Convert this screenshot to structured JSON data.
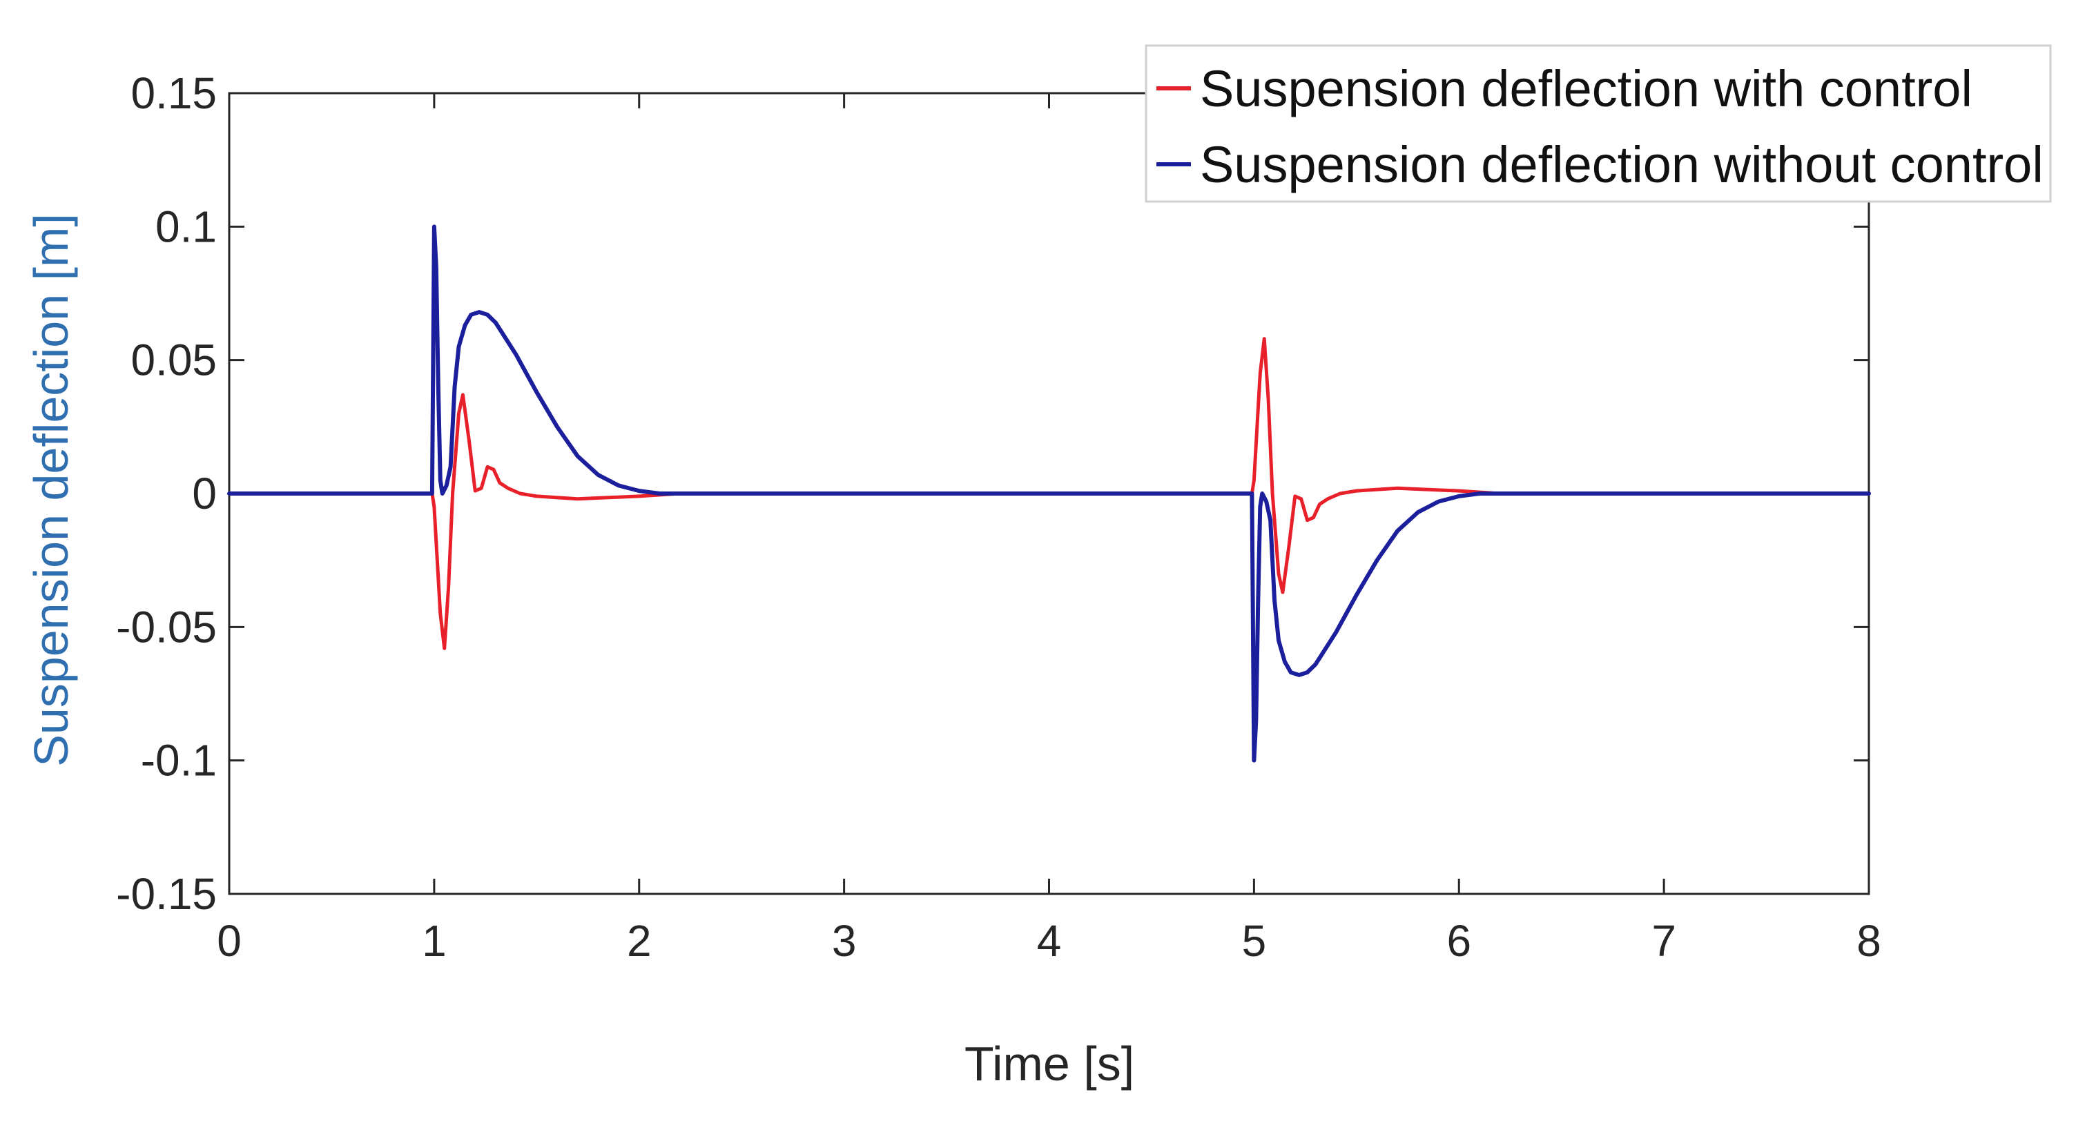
{
  "chart_data": {
    "type": "line",
    "title": "",
    "xlabel": "Time [s]",
    "ylabel": "Suspension deflection [m]",
    "xlim": [
      0,
      8
    ],
    "ylim": [
      -0.15,
      0.15
    ],
    "xticks": [
      0,
      1,
      2,
      3,
      4,
      5,
      6,
      7,
      8
    ],
    "xtick_labels": [
      "0",
      "1",
      "2",
      "3",
      "4",
      "5",
      "6",
      "7",
      "8"
    ],
    "yticks": [
      0.15,
      0.1,
      0.05,
      0,
      -0.05,
      -0.1,
      -0.15
    ],
    "ytick_labels": [
      "0.15",
      "0.1",
      "0.05",
      "0",
      "-0.05",
      "-0.1",
      "-0.15"
    ],
    "grid": false,
    "legend_position": "top-right",
    "series": [
      {
        "name": "Suspension deflection with control",
        "color": "#e8202a",
        "x": [
          0,
          0.99,
          1.0,
          1.03,
          1.05,
          1.07,
          1.09,
          1.12,
          1.14,
          1.17,
          1.2,
          1.23,
          1.26,
          1.29,
          1.32,
          1.36,
          1.42,
          1.5,
          1.7,
          1.85,
          2.0,
          2.2,
          2.5,
          3.0,
          4.99,
          5.0,
          5.03,
          5.05,
          5.07,
          5.09,
          5.12,
          5.14,
          5.17,
          5.2,
          5.23,
          5.26,
          5.29,
          5.32,
          5.36,
          5.42,
          5.5,
          5.7,
          5.85,
          6.0,
          6.2,
          6.5,
          7.0,
          8.0
        ],
        "values": [
          0,
          0,
          -0.005,
          -0.045,
          -0.058,
          -0.035,
          0.0,
          0.03,
          0.037,
          0.02,
          0.001,
          0.002,
          0.01,
          0.009,
          0.004,
          0.002,
          0.0,
          -0.001,
          -0.002,
          -0.0015,
          -0.001,
          0.0,
          0.0,
          0.0,
          0,
          0.005,
          0.045,
          0.058,
          0.035,
          0.0,
          -0.03,
          -0.037,
          -0.02,
          -0.001,
          -0.002,
          -0.01,
          -0.009,
          -0.004,
          -0.002,
          0.0,
          0.001,
          0.002,
          0.0015,
          0.001,
          0.0,
          0.0,
          0.0,
          0.0
        ]
      },
      {
        "name": "Suspension deflection without control",
        "color": "#1b1f9c",
        "x": [
          0,
          0.99,
          1.0,
          1.01,
          1.02,
          1.03,
          1.04,
          1.06,
          1.08,
          1.1,
          1.12,
          1.15,
          1.18,
          1.22,
          1.26,
          1.3,
          1.4,
          1.5,
          1.6,
          1.7,
          1.8,
          1.9,
          2.0,
          2.1,
          2.3,
          3.0,
          4.99,
          5.0,
          5.01,
          5.02,
          5.03,
          5.04,
          5.06,
          5.08,
          5.1,
          5.12,
          5.15,
          5.18,
          5.22,
          5.26,
          5.3,
          5.4,
          5.5,
          5.6,
          5.7,
          5.8,
          5.9,
          6.0,
          6.1,
          6.3,
          8.0
        ],
        "values": [
          0,
          0,
          0.1,
          0.085,
          0.04,
          0.005,
          0.0,
          0.003,
          0.01,
          0.04,
          0.055,
          0.063,
          0.067,
          0.068,
          0.067,
          0.064,
          0.052,
          0.038,
          0.025,
          0.014,
          0.007,
          0.003,
          0.001,
          0.0,
          0.0,
          0.0,
          0,
          -0.1,
          -0.085,
          -0.04,
          -0.005,
          0.0,
          -0.003,
          -0.01,
          -0.04,
          -0.055,
          -0.063,
          -0.067,
          -0.068,
          -0.067,
          -0.064,
          -0.052,
          -0.038,
          -0.025,
          -0.014,
          -0.007,
          -0.003,
          -0.001,
          0.0,
          0.0,
          0.0
        ]
      }
    ]
  },
  "colors": {
    "axis": "#262626",
    "ylabel": "#2f6fb0",
    "legend_border": "#d0d0d0"
  }
}
